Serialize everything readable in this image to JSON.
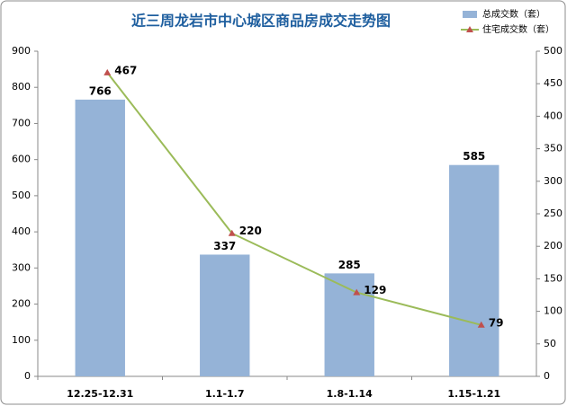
{
  "chart_data": {
    "type": "bar",
    "title": "近三周龙岩市中心城区商品房成交走势图",
    "categories": [
      "12.25-12.31",
      "1.1-1.7",
      "1.8-1.14",
      "1.15-1.21"
    ],
    "series": [
      {
        "name": "总成交数（套）",
        "color": "#95b3d7",
        "values": [
          766,
          337,
          285,
          585
        ]
      },
      {
        "name": "住宅成交数（套）",
        "color": "#9bbb59",
        "type": "line",
        "axis": "y2",
        "values": [
          467,
          220,
          129,
          79
        ]
      }
    ],
    "ylim": [
      0,
      900
    ],
    "yticks": [
      0,
      100,
      200,
      300,
      400,
      500,
      600,
      700,
      800,
      900
    ],
    "y2lim": [
      0,
      500
    ],
    "y2ticks": [
      0,
      50,
      100,
      150,
      200,
      250,
      300,
      350,
      400,
      450,
      500
    ]
  }
}
